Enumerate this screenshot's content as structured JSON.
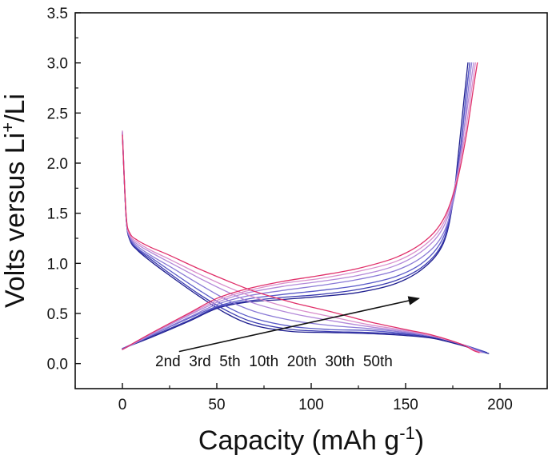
{
  "chart_data": {
    "type": "line",
    "title": "",
    "xlabel": "Capacity (mAh g-1)",
    "xlabel_parts": {
      "main": "Capacity (mAh g",
      "sup": "-1",
      "close": ")"
    },
    "ylabel": "Volts versus Li+/Li",
    "ylabel_parts": {
      "pre": "Volts versus Li",
      "sup": "+",
      "post": "/Li"
    },
    "xlim": [
      -25,
      225
    ],
    "ylim": [
      -0.25,
      3.5
    ],
    "xticks": [
      0,
      50,
      100,
      150,
      200
    ],
    "xtick_labels": [
      "0",
      "50",
      "100",
      "150",
      "200"
    ],
    "yticks": [
      0.0,
      0.5,
      1.0,
      1.5,
      2.0,
      2.5,
      3.0,
      3.5
    ],
    "ytick_labels": [
      "0.0",
      "0.5",
      "1.0",
      "1.5",
      "2.0",
      "2.5",
      "3.0",
      "3.5"
    ],
    "grid": false,
    "legend": "none",
    "annotation": {
      "text": "2nd  3rd  5th  10th  20th  30th  50th",
      "arrow_from": [
        30,
        0.12
      ],
      "arrow_to": [
        157,
        0.65
      ]
    },
    "series": [
      {
        "cycle": "2nd",
        "color": "#1f1f8f",
        "discharge": {
          "x": [
            0,
            2,
            4,
            8,
            15,
            25,
            40,
            55,
            70,
            90,
            110,
            130,
            150,
            165,
            180,
            190,
            194
          ],
          "y": [
            2.3,
            1.45,
            1.23,
            1.13,
            1.02,
            0.88,
            0.68,
            0.5,
            0.38,
            0.32,
            0.31,
            0.3,
            0.28,
            0.25,
            0.18,
            0.12,
            0.1
          ]
        },
        "charge": {
          "x": [
            0,
            15,
            35,
            50,
            65,
            85,
            105,
            125,
            145,
            160,
            170,
            175,
            178,
            181,
            183
          ],
          "y": [
            0.15,
            0.26,
            0.42,
            0.55,
            0.61,
            0.64,
            0.67,
            0.71,
            0.8,
            0.96,
            1.2,
            1.6,
            2.1,
            2.65,
            3.0
          ]
        }
      },
      {
        "cycle": "3rd",
        "color": "#3b3bb0",
        "discharge": {
          "x": [
            0,
            2,
            4,
            8,
            15,
            25,
            40,
            55,
            70,
            90,
            110,
            130,
            150,
            165,
            180,
            190,
            193
          ],
          "y": [
            2.3,
            1.45,
            1.24,
            1.14,
            1.04,
            0.9,
            0.7,
            0.53,
            0.41,
            0.34,
            0.32,
            0.31,
            0.29,
            0.26,
            0.19,
            0.13,
            0.11
          ]
        },
        "charge": {
          "x": [
            0,
            15,
            35,
            50,
            65,
            85,
            105,
            125,
            145,
            160,
            170,
            175,
            179,
            182,
            184
          ],
          "y": [
            0.15,
            0.27,
            0.43,
            0.56,
            0.62,
            0.66,
            0.69,
            0.74,
            0.83,
            0.98,
            1.22,
            1.62,
            2.12,
            2.67,
            3.0
          ]
        }
      },
      {
        "cycle": "5th",
        "color": "#5a5ac8",
        "discharge": {
          "x": [
            0,
            2,
            4,
            8,
            15,
            25,
            40,
            55,
            70,
            90,
            110,
            130,
            150,
            165,
            180,
            189,
            192
          ],
          "y": [
            2.31,
            1.46,
            1.25,
            1.15,
            1.06,
            0.93,
            0.74,
            0.57,
            0.45,
            0.37,
            0.34,
            0.33,
            0.3,
            0.27,
            0.19,
            0.13,
            0.11
          ]
        },
        "charge": {
          "x": [
            0,
            15,
            35,
            50,
            65,
            85,
            105,
            125,
            145,
            160,
            170,
            175,
            179,
            182,
            184
          ],
          "y": [
            0.15,
            0.28,
            0.45,
            0.57,
            0.64,
            0.69,
            0.73,
            0.78,
            0.87,
            1.02,
            1.26,
            1.65,
            2.15,
            2.69,
            3.0
          ]
        }
      },
      {
        "cycle": "10th",
        "color": "#8a7ad6",
        "discharge": {
          "x": [
            0,
            2,
            4,
            8,
            15,
            25,
            40,
            55,
            70,
            90,
            110,
            130,
            150,
            165,
            180,
            188,
            191
          ],
          "y": [
            2.31,
            1.46,
            1.26,
            1.17,
            1.08,
            0.97,
            0.8,
            0.64,
            0.52,
            0.43,
            0.38,
            0.35,
            0.31,
            0.27,
            0.19,
            0.13,
            0.11
          ]
        },
        "charge": {
          "x": [
            0,
            15,
            35,
            50,
            65,
            85,
            105,
            125,
            145,
            160,
            170,
            176,
            180,
            183,
            185
          ],
          "y": [
            0.14,
            0.28,
            0.46,
            0.59,
            0.67,
            0.73,
            0.78,
            0.84,
            0.93,
            1.08,
            1.3,
            1.68,
            2.18,
            2.7,
            3.0
          ]
        }
      },
      {
        "cycle": "20th",
        "color": "#b389d9",
        "discharge": {
          "x": [
            0,
            2,
            4,
            8,
            15,
            25,
            40,
            55,
            70,
            90,
            110,
            130,
            150,
            165,
            180,
            187,
            190
          ],
          "y": [
            2.32,
            1.47,
            1.27,
            1.19,
            1.11,
            1.01,
            0.86,
            0.72,
            0.6,
            0.5,
            0.43,
            0.37,
            0.32,
            0.27,
            0.19,
            0.13,
            0.11
          ]
        },
        "charge": {
          "x": [
            0,
            15,
            35,
            50,
            65,
            85,
            105,
            125,
            145,
            160,
            170,
            176,
            180,
            184,
            186
          ],
          "y": [
            0.14,
            0.29,
            0.48,
            0.61,
            0.7,
            0.77,
            0.82,
            0.88,
            0.98,
            1.14,
            1.36,
            1.72,
            2.2,
            2.72,
            3.0
          ]
        }
      },
      {
        "cycle": "30th",
        "color": "#d98fcc",
        "discharge": {
          "x": [
            0,
            2,
            4,
            8,
            15,
            25,
            40,
            55,
            70,
            90,
            110,
            130,
            150,
            165,
            180,
            187,
            190
          ],
          "y": [
            2.32,
            1.47,
            1.28,
            1.21,
            1.13,
            1.04,
            0.9,
            0.77,
            0.66,
            0.55,
            0.47,
            0.39,
            0.33,
            0.27,
            0.19,
            0.13,
            0.11
          ]
        },
        "charge": {
          "x": [
            0,
            15,
            35,
            50,
            65,
            85,
            105,
            125,
            145,
            160,
            170,
            176,
            181,
            185,
            187
          ],
          "y": [
            0.14,
            0.3,
            0.49,
            0.63,
            0.72,
            0.8,
            0.85,
            0.92,
            1.02,
            1.18,
            1.4,
            1.76,
            2.23,
            2.74,
            3.0
          ]
        }
      },
      {
        "cycle": "50th",
        "color": "#e0306a",
        "discharge": {
          "x": [
            0,
            2,
            4,
            8,
            15,
            25,
            40,
            55,
            70,
            90,
            110,
            130,
            150,
            165,
            180,
            186,
            189
          ],
          "y": [
            2.28,
            1.48,
            1.3,
            1.23,
            1.16,
            1.08,
            0.95,
            0.83,
            0.72,
            0.61,
            0.52,
            0.42,
            0.34,
            0.28,
            0.19,
            0.13,
            0.11
          ]
        },
        "charge": {
          "x": [
            0,
            15,
            35,
            50,
            65,
            85,
            105,
            125,
            145,
            160,
            170,
            177,
            182,
            186,
            188
          ],
          "y": [
            0.14,
            0.3,
            0.5,
            0.65,
            0.74,
            0.82,
            0.88,
            0.95,
            1.06,
            1.22,
            1.44,
            1.8,
            2.26,
            2.76,
            3.0
          ]
        }
      }
    ]
  }
}
